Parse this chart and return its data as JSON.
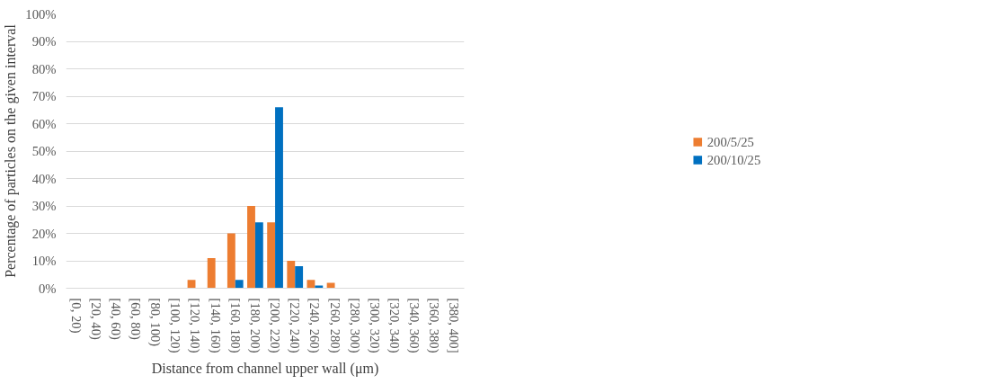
{
  "chart_data": {
    "type": "bar",
    "xlabel": "Distance from channel upper wall (μm)",
    "ylabel": "Percentage of particles on the given interval",
    "categories": [
      "[0, 20)",
      "[20, 40)",
      "[40, 60)",
      "[60, 80)",
      "[80, 100)",
      "[100, 120)",
      "[120, 140)",
      "[140, 160)",
      "[160, 180)",
      "[180, 200)",
      "[200, 220)",
      "[220, 240)",
      "[240, 260)",
      "[260, 280)",
      "[280, 300)",
      "[300, 320)",
      "[320, 340)",
      "[340, 360)",
      "[360, 380)",
      "[380, 400]"
    ],
    "series": [
      {
        "name": "200/5/25",
        "color": "#ed7d31",
        "values": [
          0,
          0,
          0,
          0,
          0,
          0,
          3,
          11,
          20,
          30,
          24,
          10,
          3,
          2,
          0,
          0,
          0,
          0,
          0,
          0
        ]
      },
      {
        "name": "200/10/25",
        "color": "#0070c0",
        "values": [
          0,
          0,
          0,
          0,
          0,
          0,
          0,
          0,
          3,
          24,
          66,
          8,
          1,
          0,
          0,
          0,
          0,
          0,
          0,
          0
        ]
      }
    ],
    "ylim": [
      0,
      100
    ],
    "yticks": [
      {
        "value": 0,
        "label": "0%"
      },
      {
        "value": 10,
        "label": "10%"
      },
      {
        "value": 20,
        "label": "20%"
      },
      {
        "value": 30,
        "label": "30%"
      },
      {
        "value": 40,
        "label": "40%"
      },
      {
        "value": 50,
        "label": "50%"
      },
      {
        "value": 60,
        "label": "60%"
      },
      {
        "value": 70,
        "label": "70%"
      },
      {
        "value": 80,
        "label": "80%"
      },
      {
        "value": 90,
        "label": "90%"
      },
      {
        "value": 100,
        "label": "100%"
      }
    ],
    "grid": "y",
    "legend": "right"
  }
}
